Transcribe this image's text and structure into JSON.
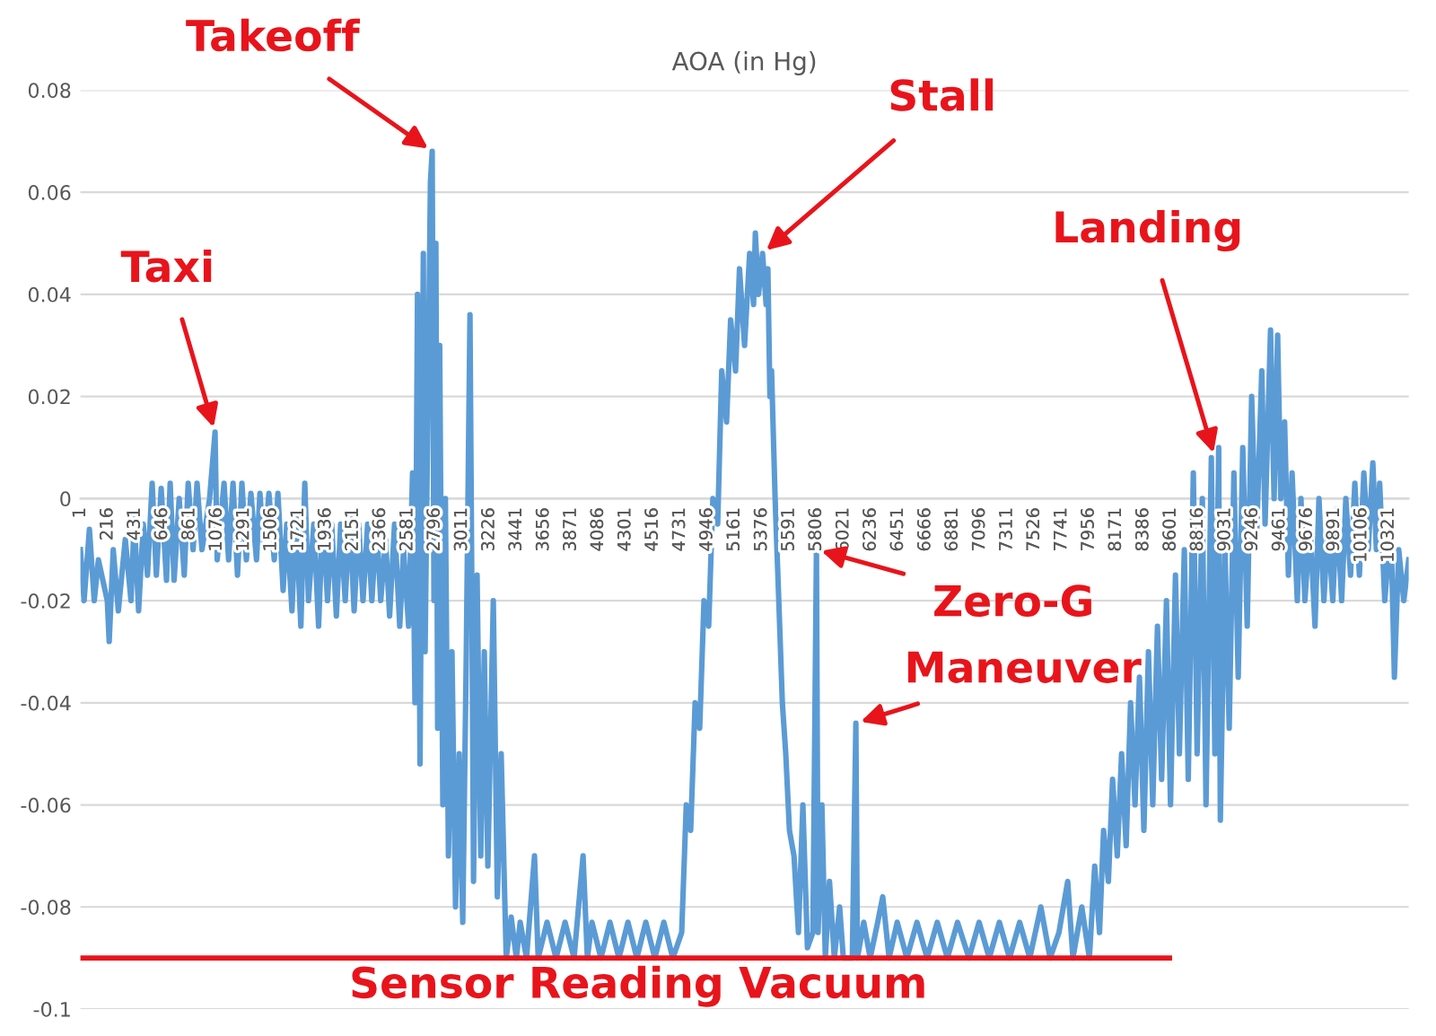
{
  "chart_data": {
    "type": "line",
    "title": "AOA (in Hg)",
    "xlim": [
      1,
      10479
    ],
    "xticks": [
      1,
      216,
      431,
      646,
      861,
      1076,
      1291,
      1506,
      1721,
      1936,
      2151,
      2366,
      2581,
      2796,
      3011,
      3226,
      3441,
      3656,
      3871,
      4086,
      4301,
      4516,
      4731,
      4946,
      5161,
      5376,
      5591,
      5806,
      6021,
      6236,
      6451,
      6666,
      6881,
      7096,
      7311,
      7526,
      7741,
      7956,
      8171,
      8386,
      8601,
      8816,
      9031,
      9246,
      9461,
      9676,
      9891,
      10106,
      10321
    ],
    "ylim": [
      -0.1,
      0.08
    ],
    "yticks": [
      -0.1,
      -0.08,
      -0.06,
      -0.04,
      -0.02,
      0,
      0.02,
      0.04,
      0.06,
      0.08
    ],
    "grid": "y",
    "series": [
      {
        "color": "#5b9bd5",
        "x": [
          1,
          30,
          72,
          110,
          143,
          213,
          228,
          260,
          300,
          355,
          400,
          426,
          460,
          497,
          530,
          567,
          600,
          638,
          680,
          709,
          740,
          780,
          820,
          851,
          890,
          921,
          960,
          1020,
          1063,
          1080,
          1134,
          1170,
          1205,
          1240,
          1275,
          1310,
          1346,
          1390,
          1417,
          1450,
          1488,
          1530,
          1559,
          1600,
          1629,
          1670,
          1700,
          1740,
          1771,
          1800,
          1842,
          1880,
          1913,
          1950,
          1983,
          2020,
          2054,
          2090,
          2125,
          2160,
          2196,
          2230,
          2267,
          2300,
          2337,
          2370,
          2408,
          2440,
          2479,
          2520,
          2550,
          2590,
          2621,
          2640,
          2660,
          2680,
          2706,
          2720,
          2762,
          2776,
          2790,
          2805,
          2819,
          2835,
          2860,
          2880,
          2904,
          2932,
          2960,
          2989,
          3017,
          3045,
          3074,
          3088,
          3102,
          3130,
          3159,
          3187,
          3215,
          3258,
          3290,
          3320,
          3360,
          3399,
          3440,
          3470,
          3520,
          3583,
          3612,
          3682,
          3753,
          3824,
          3895,
          3966,
          4000,
          4036,
          4107,
          4178,
          4249,
          4320,
          4390,
          4461,
          4532,
          4603,
          4674,
          4744,
          4780,
          4815,
          4850,
          4886,
          4920,
          4957,
          4990,
          5028,
          5060,
          5098,
          5130,
          5169,
          5200,
          5240,
          5280,
          5311,
          5325,
          5350,
          5382,
          5410,
          5424,
          5440,
          5453,
          5481,
          5510,
          5538,
          5565,
          5594,
          5630,
          5665,
          5700,
          5736,
          5779,
          5807,
          5820,
          5850,
          5877,
          5910,
          5948,
          5990,
          6019,
          6090,
          6118,
          6130,
          6180,
          6231,
          6290,
          6330,
          6380,
          6444,
          6520,
          6600,
          6680,
          6760,
          6840,
          6920,
          7010,
          7090,
          7170,
          7250,
          7330,
          7410,
          7490,
          7577,
          7650,
          7720,
          7789,
          7830,
          7900,
          7960,
          8002,
          8040,
          8072,
          8110,
          8143,
          8180,
          8214,
          8250,
          8285,
          8320,
          8355,
          8390,
          8426,
          8460,
          8497,
          8530,
          8568,
          8600,
          8639,
          8670,
          8709,
          8740,
          8780,
          8810,
          8851,
          8880,
          8922,
          8950,
          8980,
          8993,
          9030,
          9063,
          9100,
          9134,
          9170,
          9205,
          9240,
          9276,
          9320,
          9346,
          9389,
          9417,
          9445,
          9470,
          9500,
          9530,
          9559,
          9600,
          9629,
          9660,
          9700,
          9740,
          9771,
          9810,
          9842,
          9880,
          9913,
          9950,
          9983,
          10020,
          10054,
          10090,
          10125,
          10160,
          10196,
          10224,
          10250,
          10290,
          10338,
          10366,
          10400,
          10440,
          10479
        ],
        "values": [
          -0.01,
          -0.02,
          -0.006,
          -0.02,
          -0.012,
          -0.02,
          -0.028,
          -0.01,
          -0.022,
          -0.008,
          -0.02,
          -0.004,
          -0.022,
          -0.005,
          -0.015,
          0.003,
          -0.015,
          0.002,
          -0.016,
          0.003,
          -0.016,
          0.0,
          -0.015,
          0.003,
          -0.01,
          0.003,
          -0.01,
          0.0,
          0.013,
          -0.012,
          0.003,
          -0.012,
          0.003,
          -0.015,
          0.003,
          -0.012,
          0.001,
          -0.012,
          0.001,
          -0.01,
          0.001,
          -0.012,
          0.001,
          -0.018,
          -0.005,
          -0.022,
          -0.003,
          -0.025,
          0.003,
          -0.02,
          -0.005,
          -0.025,
          -0.003,
          -0.02,
          -0.005,
          -0.023,
          -0.005,
          -0.02,
          -0.003,
          -0.022,
          -0.005,
          -0.02,
          -0.005,
          -0.02,
          -0.005,
          -0.02,
          -0.008,
          -0.023,
          -0.005,
          -0.025,
          -0.01,
          -0.025,
          0.005,
          -0.04,
          0.04,
          -0.052,
          0.048,
          -0.03,
          0.062,
          0.068,
          -0.02,
          0.05,
          -0.045,
          0.03,
          -0.06,
          0.0,
          -0.07,
          -0.03,
          -0.08,
          -0.05,
          -0.083,
          -0.03,
          0.036,
          -0.015,
          -0.075,
          -0.015,
          -0.07,
          -0.03,
          -0.072,
          -0.02,
          -0.078,
          -0.05,
          -0.09,
          -0.082,
          -0.09,
          -0.083,
          -0.09,
          -0.07,
          -0.09,
          -0.083,
          -0.09,
          -0.083,
          -0.09,
          -0.07,
          -0.09,
          -0.083,
          -0.09,
          -0.083,
          -0.09,
          -0.083,
          -0.09,
          -0.083,
          -0.09,
          -0.083,
          -0.09,
          -0.085,
          -0.06,
          -0.065,
          -0.04,
          -0.045,
          -0.02,
          -0.025,
          0.0,
          -0.005,
          0.025,
          0.015,
          0.035,
          0.025,
          0.045,
          0.03,
          0.048,
          0.038,
          0.052,
          0.04,
          0.048,
          0.038,
          0.045,
          0.02,
          0.025,
          0.0,
          -0.02,
          -0.04,
          -0.05,
          -0.065,
          -0.07,
          -0.085,
          -0.06,
          -0.088,
          -0.085,
          -0.01,
          -0.085,
          -0.06,
          -0.09,
          -0.075,
          -0.09,
          -0.08,
          -0.09,
          -0.09,
          -0.044,
          -0.09,
          -0.083,
          -0.09,
          -0.083,
          -0.078,
          -0.09,
          -0.083,
          -0.09,
          -0.083,
          -0.09,
          -0.083,
          -0.09,
          -0.083,
          -0.09,
          -0.083,
          -0.09,
          -0.083,
          -0.09,
          -0.083,
          -0.09,
          -0.08,
          -0.09,
          -0.085,
          -0.075,
          -0.09,
          -0.08,
          -0.09,
          -0.072,
          -0.085,
          -0.065,
          -0.075,
          -0.055,
          -0.07,
          -0.05,
          -0.068,
          -0.04,
          -0.06,
          -0.035,
          -0.065,
          -0.03,
          -0.06,
          -0.025,
          -0.055,
          -0.02,
          -0.06,
          -0.015,
          -0.05,
          -0.01,
          -0.055,
          0.005,
          -0.05,
          0.0,
          -0.06,
          0.008,
          -0.05,
          0.01,
          -0.063,
          -0.01,
          -0.045,
          0.005,
          -0.035,
          0.01,
          -0.025,
          0.02,
          -0.01,
          0.025,
          -0.005,
          0.033,
          0.0,
          0.032,
          0.0,
          0.015,
          -0.015,
          0.005,
          -0.02,
          0.0,
          -0.02,
          -0.005,
          -0.025,
          0.0,
          -0.02,
          -0.005,
          -0.02,
          -0.002,
          -0.02,
          0.0,
          -0.015,
          0.003,
          -0.015,
          0.005,
          -0.01,
          0.007,
          -0.01,
          0.003,
          -0.02,
          -0.005,
          -0.035,
          -0.01,
          -0.02,
          -0.012
        ]
      }
    ],
    "ref_lines": [
      {
        "axis": "y",
        "value": -0.09,
        "label": "Sensor Reading Vacuum",
        "color": "#e8141b"
      }
    ],
    "annotations": [
      {
        "text": "Taxi",
        "x": 1063,
        "y": 0.013
      },
      {
        "text": "Takeoff",
        "x": 2776,
        "y": 0.068
      },
      {
        "text": "Stall",
        "x": 5382,
        "y": 0.048
      },
      {
        "text": "Landing",
        "x": 8950,
        "y": 0.008
      },
      {
        "text": "Zero-G",
        "x": 5807,
        "y": -0.01
      },
      {
        "text": "Maneuver",
        "x": 6118,
        "y": -0.044
      }
    ]
  }
}
